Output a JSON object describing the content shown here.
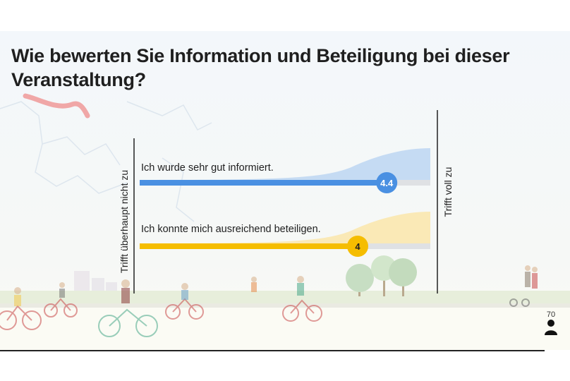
{
  "title": "Wie bewerten Sie Information und Beteiligung bei dieser Veranstaltung?",
  "participants": {
    "count": "70",
    "icon": "person-icon"
  },
  "chart_data": {
    "type": "bar",
    "orientation": "horizontal",
    "scale_min_label": "Trifft überhaupt nicht zu",
    "scale_max_label": "Trifft voll zu",
    "xlim": [
      1,
      5
    ],
    "items": [
      {
        "label": "Ich wurde sehr gut informiert.",
        "value": 4.4,
        "value_label": "4.4",
        "color": "#4a90e2",
        "dist_color": "#c5dbf3"
      },
      {
        "label": "Ich konnte mich ausreichend beteiligen.",
        "value": 4,
        "value_label": "4",
        "color": "#f5bd00",
        "dist_color": "#fae9b6"
      }
    ]
  },
  "colors": {
    "track": "#dfe1e4",
    "axis": "#222222",
    "marker_text": "#ffffff",
    "label_text": "#1f1f1f"
  }
}
